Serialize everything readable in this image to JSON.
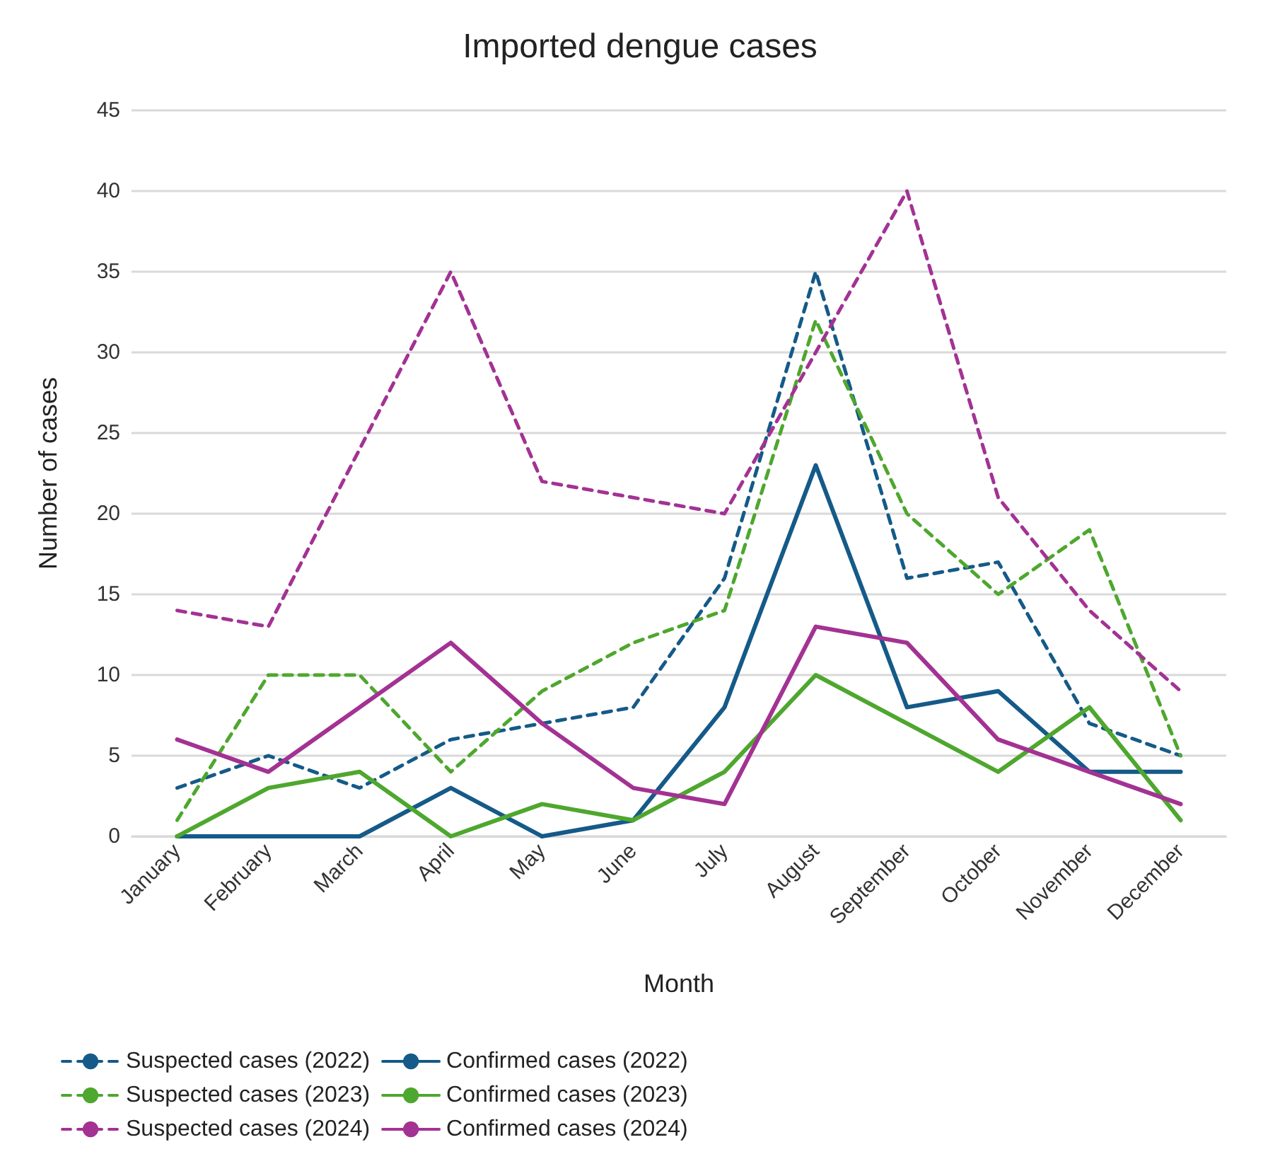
{
  "chart_data": {
    "type": "line",
    "title": "Imported dengue cases",
    "xlabel": "Month",
    "ylabel": "Number of cases",
    "categories": [
      "January",
      "February",
      "March",
      "April",
      "May",
      "June",
      "July",
      "August",
      "September",
      "October",
      "November",
      "December"
    ],
    "series": [
      {
        "name": "Suspected cases (2022)",
        "color": "#155a88",
        "line_style": "dashed",
        "values": [
          3,
          5,
          3,
          6,
          7,
          8,
          16,
          35,
          16,
          17,
          7,
          5
        ]
      },
      {
        "name": "Suspected cases (2023)",
        "color": "#4ea72e",
        "line_style": "dashed",
        "values": [
          1,
          10,
          10,
          4,
          9,
          12,
          14,
          32,
          20,
          15,
          19,
          5
        ]
      },
      {
        "name": "Suspected cases (2024)",
        "color": "#a33293",
        "line_style": "dashed",
        "values": [
          14,
          13,
          24,
          35,
          22,
          21,
          20,
          30,
          40,
          21,
          14,
          9
        ]
      },
      {
        "name": "Confirmed cases (2022)",
        "color": "#155a88",
        "line_style": "solid",
        "values": [
          0,
          0,
          0,
          3,
          0,
          1,
          8,
          23,
          8,
          9,
          4,
          4
        ]
      },
      {
        "name": "Confirmed cases (2023)",
        "color": "#4ea72e",
        "line_style": "solid",
        "values": [
          0,
          3,
          4,
          0,
          2,
          1,
          4,
          10,
          7,
          4,
          8,
          1
        ]
      },
      {
        "name": "Confirmed cases (2024)",
        "color": "#a33293",
        "line_style": "solid",
        "values": [
          6,
          4,
          8,
          12,
          7,
          3,
          2,
          13,
          12,
          6,
          4,
          2
        ]
      }
    ],
    "ylim": [
      0,
      45
    ],
    "yticks": [
      0,
      5,
      10,
      15,
      20,
      25,
      30,
      35,
      40,
      45
    ],
    "grid": "y",
    "legend": "bottom",
    "marker": "none"
  }
}
